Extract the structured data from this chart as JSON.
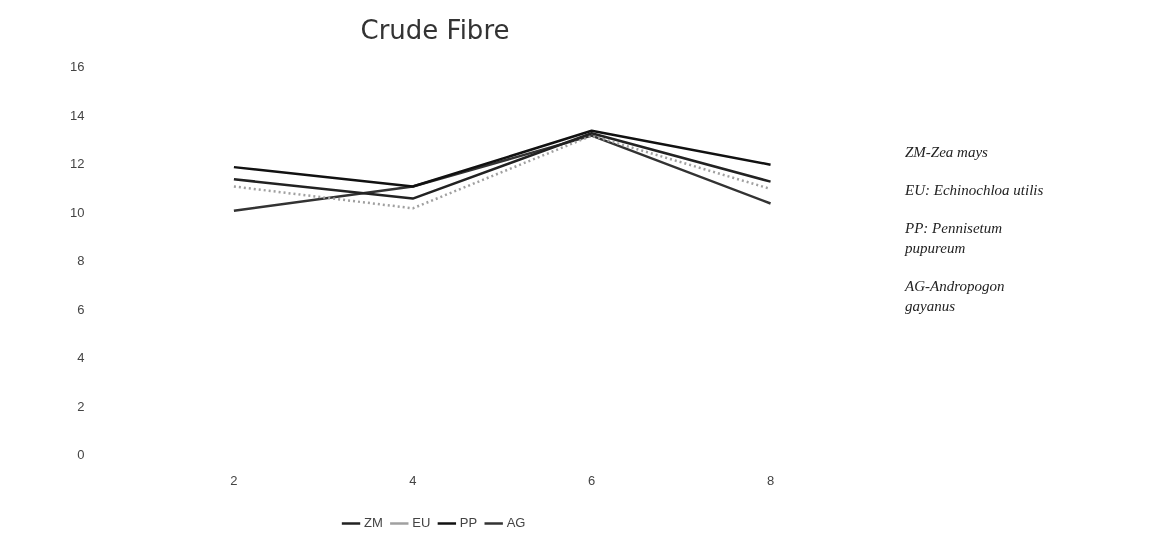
{
  "chart_data": {
    "type": "line",
    "title": "Crude Fibre",
    "categories": [
      "2",
      "4",
      "6",
      "8"
    ],
    "series": [
      {
        "name": "ZM",
        "color": "#222222",
        "values": [
          11.4,
          10.6,
          13.3,
          11.3
        ]
      },
      {
        "name": "EU",
        "color": "#a0a0a0",
        "values": [
          11.1,
          10.2,
          13.2,
          11.0
        ],
        "line_style": "dotted"
      },
      {
        "name": "PP",
        "color": "#111111",
        "values": [
          11.9,
          11.1,
          13.4,
          12.0
        ]
      },
      {
        "name": "AG",
        "color": "#333333",
        "values": [
          10.1,
          11.1,
          13.2,
          10.4
        ]
      }
    ],
    "ylim": [
      0,
      16
    ],
    "yticks": [
      0,
      2,
      4,
      6,
      8,
      10,
      12,
      14,
      16
    ],
    "grid": false,
    "legend": "bottom",
    "line_style": "solid",
    "marker": "none",
    "annotations": [
      "ZM-Zea mays",
      "EU: Echinochloa utilis",
      "PP: Pennisetum pupureum",
      "AG-Andropogon gayanus"
    ]
  }
}
